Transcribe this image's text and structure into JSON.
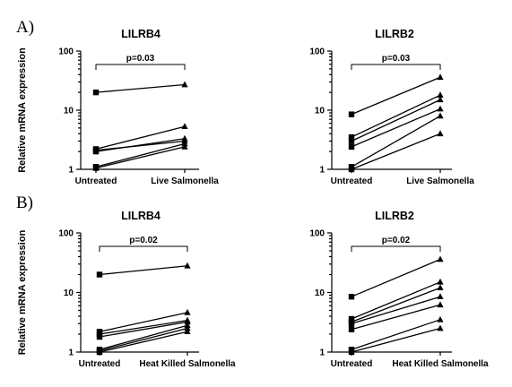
{
  "figure": {
    "panel_letters": [
      "A)",
      "B)"
    ]
  },
  "chart_data": [
    {
      "type": "line",
      "title": "LILRB4",
      "ylabel": "Relative mRNA expression",
      "yscale": "log",
      "ylim": [
        1,
        100
      ],
      "yticks": [
        "1",
        "10",
        "100"
      ],
      "categories": [
        "Untreated",
        "Live Salmonella"
      ],
      "pvalue": "p=0.03",
      "markers": [
        "square",
        "triangle"
      ],
      "series": [
        {
          "values": [
            20,
            27
          ]
        },
        {
          "values": [
            2.2,
            5.3
          ]
        },
        {
          "values": [
            2.0,
            3.3
          ]
        },
        {
          "values": [
            2.1,
            3.0
          ]
        },
        {
          "values": [
            1.1,
            2.7
          ]
        },
        {
          "values": [
            1.05,
            2.4
          ]
        }
      ]
    },
    {
      "type": "line",
      "title": "LILRB2",
      "ylabel": "",
      "yscale": "log",
      "ylim": [
        1,
        100
      ],
      "yticks": [
        "1",
        "10",
        "100"
      ],
      "categories": [
        "Untreated",
        "Live Salmonella"
      ],
      "pvalue": "p=0.03",
      "markers": [
        "square",
        "triangle"
      ],
      "series": [
        {
          "values": [
            8.5,
            36
          ]
        },
        {
          "values": [
            3.5,
            18
          ]
        },
        {
          "values": [
            3.0,
            15
          ]
        },
        {
          "values": [
            2.4,
            10.5
          ]
        },
        {
          "values": [
            1.1,
            8
          ]
        },
        {
          "values": [
            1.0,
            4
          ]
        }
      ]
    },
    {
      "type": "line",
      "title": "LILRB4",
      "ylabel": "Relative mRNA expression",
      "yscale": "log",
      "ylim": [
        1,
        100
      ],
      "yticks": [
        "1",
        "10",
        "100"
      ],
      "categories": [
        "Untreated",
        "Heat Killed Salmonella"
      ],
      "pvalue": "p=0.02",
      "markers": [
        "square",
        "triangle"
      ],
      "series": [
        {
          "values": [
            20,
            28
          ]
        },
        {
          "values": [
            2.2,
            4.6
          ]
        },
        {
          "values": [
            2.0,
            3.4
          ]
        },
        {
          "values": [
            1.8,
            3.2
          ]
        },
        {
          "values": [
            1.1,
            2.8
          ]
        },
        {
          "values": [
            1.05,
            2.5
          ]
        },
        {
          "values": [
            1.0,
            2.2
          ]
        }
      ]
    },
    {
      "type": "line",
      "title": "LILRB2",
      "ylabel": "",
      "yscale": "log",
      "ylim": [
        1,
        100
      ],
      "yticks": [
        "1",
        "10",
        "100"
      ],
      "categories": [
        "Untreated",
        "Heat Killed Salmonella"
      ],
      "pvalue": "p=0.02",
      "markers": [
        "square",
        "triangle"
      ],
      "series": [
        {
          "values": [
            8.5,
            36
          ]
        },
        {
          "values": [
            3.6,
            15
          ]
        },
        {
          "values": [
            3.2,
            12
          ]
        },
        {
          "values": [
            3.0,
            8.5
          ]
        },
        {
          "values": [
            2.4,
            6.2
          ]
        },
        {
          "values": [
            1.1,
            3.5
          ]
        },
        {
          "values": [
            1.0,
            2.5
          ]
        }
      ]
    }
  ]
}
